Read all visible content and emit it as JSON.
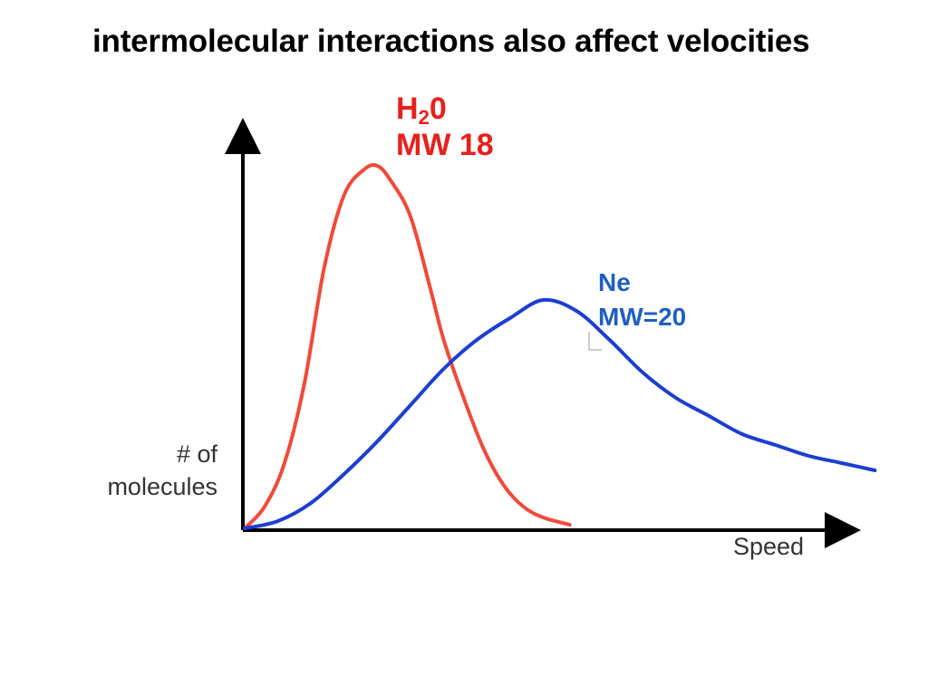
{
  "slide": {
    "title": "intermolecular interactions also affect velocities"
  },
  "chart_data": {
    "type": "line",
    "xlabel": "Speed",
    "ylabel_lines": [
      "# of",
      "molecules"
    ],
    "grid": false,
    "legend": "none",
    "xlim": [
      0,
      100
    ],
    "ylim": [
      0,
      100
    ],
    "series": [
      {
        "label": {
          "formula_main": "H",
          "formula_sub": "2",
          "formula_tail": "0",
          "line2": "MW 18"
        },
        "color": "#f04a3a",
        "x": [
          0,
          3,
          6,
          9,
          12,
          15,
          18,
          20,
          22,
          25,
          28,
          30,
          33,
          36,
          39,
          42,
          45,
          49
        ],
        "y": [
          0,
          6,
          18,
          40,
          72,
          92,
          99,
          100,
          96,
          86,
          66,
          52,
          36,
          22,
          12,
          6,
          3,
          1
        ]
      },
      {
        "label": {
          "line1": "Ne",
          "line2": "MW=20"
        },
        "color": "#1c3fd0",
        "x": [
          0,
          5,
          10,
          15,
          20,
          25,
          30,
          35,
          40,
          45,
          50,
          55,
          60,
          65,
          70,
          75,
          80,
          85,
          90,
          95
        ],
        "y": [
          0,
          2,
          7,
          15,
          24,
          34,
          44,
          52,
          58,
          63,
          60,
          52,
          43,
          36,
          31,
          26,
          23,
          20,
          18,
          16
        ]
      }
    ]
  }
}
